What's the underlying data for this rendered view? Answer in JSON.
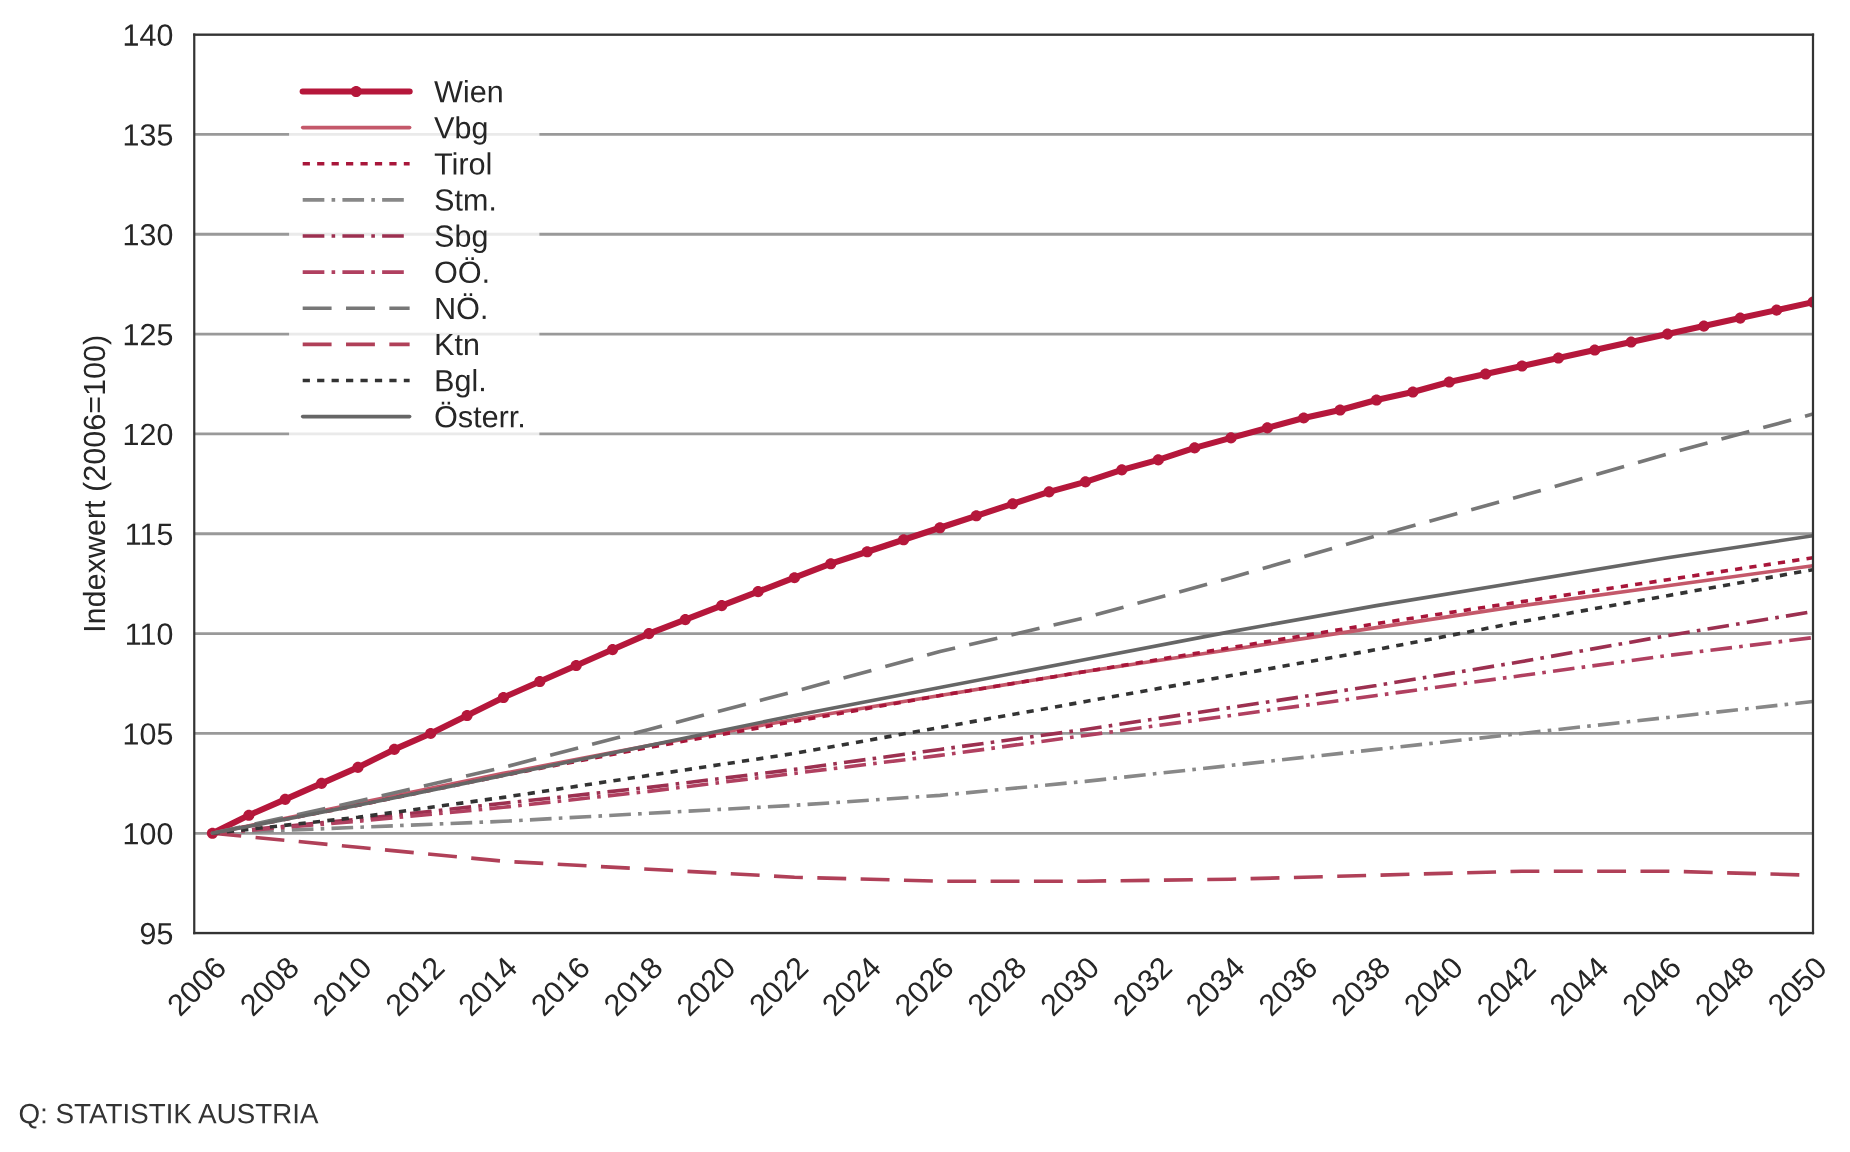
{
  "chart_data": {
    "type": "line",
    "ylabel": "Indexwert (2006=100)",
    "xlim": [
      2005.5,
      2050
    ],
    "ylim": [
      95,
      140
    ],
    "xticks": [
      2006,
      2008,
      2010,
      2012,
      2014,
      2016,
      2018,
      2020,
      2022,
      2024,
      2026,
      2028,
      2030,
      2032,
      2034,
      2036,
      2038,
      2040,
      2042,
      2044,
      2046,
      2048,
      2050
    ],
    "yticks": [
      95,
      100,
      105,
      110,
      115,
      120,
      125,
      130,
      135,
      140
    ],
    "grid": "y",
    "legend": "top left",
    "annotations": [
      "Q: STATISTIK AUSTRIA"
    ],
    "x": [
      2006,
      2010,
      2014,
      2018,
      2022,
      2026,
      2030,
      2034,
      2038,
      2042,
      2046,
      2050
    ],
    "series": [
      {
        "name": "Wien",
        "color": "#b5173b",
        "marker": "circle",
        "line_style": "solid",
        "x": [
          2006,
          2007,
          2008,
          2009,
          2010,
          2011,
          2012,
          2013,
          2014,
          2015,
          2016,
          2017,
          2018,
          2019,
          2020,
          2021,
          2022,
          2023,
          2024,
          2025,
          2026,
          2027,
          2028,
          2029,
          2030,
          2031,
          2032,
          2033,
          2034,
          2035,
          2036,
          2037,
          2038,
          2039,
          2040,
          2041,
          2042,
          2043,
          2044,
          2045,
          2046,
          2047,
          2048,
          2049,
          2050
        ],
        "values": [
          100,
          100.9,
          101.7,
          102.5,
          103.3,
          104.2,
          105.0,
          105.9,
          106.8,
          107.6,
          108.4,
          109.2,
          110.0,
          110.7,
          111.4,
          112.1,
          112.8,
          113.5,
          114.1,
          114.7,
          115.3,
          115.9,
          116.5,
          117.1,
          117.6,
          118.2,
          118.7,
          119.3,
          119.8,
          120.3,
          120.8,
          121.2,
          121.7,
          122.1,
          122.6,
          123.0,
          123.4,
          123.8,
          124.2,
          124.6,
          125.0,
          125.4,
          125.8,
          126.2,
          126.6
        ]
      },
      {
        "name": "Vbg",
        "color": "#c4586a",
        "line_style": "solid",
        "values": [
          100,
          101.5,
          103.0,
          104.4,
          105.7,
          106.9,
          108.1,
          109.2,
          110.3,
          111.4,
          112.4,
          113.4
        ]
      },
      {
        "name": "Tirol",
        "color": "#a8163a",
        "line_style": "dotted",
        "values": [
          100,
          101.4,
          102.9,
          104.3,
          105.6,
          106.9,
          108.1,
          109.3,
          110.5,
          111.6,
          112.7,
          113.8
        ]
      },
      {
        "name": "Stm.",
        "color": "#888888",
        "line_style": "dashdot",
        "values": [
          100,
          100.3,
          100.6,
          101.0,
          101.4,
          101.9,
          102.6,
          103.4,
          104.2,
          105.0,
          105.8,
          106.6
        ]
      },
      {
        "name": "Sbg",
        "color": "#9c3050",
        "line_style": "dashdot",
        "values": [
          100,
          100.7,
          101.5,
          102.3,
          103.2,
          104.2,
          105.2,
          106.3,
          107.4,
          108.6,
          109.9,
          111.1
        ]
      },
      {
        "name": "OÖ.",
        "color": "#b04060",
        "line_style": "dashdot",
        "values": [
          100,
          100.6,
          101.3,
          102.1,
          103.0,
          103.9,
          104.9,
          105.9,
          106.9,
          107.9,
          108.9,
          109.8
        ]
      },
      {
        "name": "NÖ.",
        "color": "#777777",
        "line_style": "dashed",
        "values": [
          100,
          101.6,
          103.3,
          105.2,
          107.1,
          109.1,
          110.8,
          112.8,
          114.9,
          116.9,
          119.0,
          121.0
        ]
      },
      {
        "name": "Ktn",
        "color": "#b04058",
        "line_style": "dashed",
        "values": [
          100,
          99.3,
          98.6,
          98.2,
          97.8,
          97.6,
          97.6,
          97.7,
          97.9,
          98.1,
          98.1,
          97.9
        ]
      },
      {
        "name": "Bgl.",
        "color": "#333333",
        "line_style": "dotted",
        "values": [
          100,
          100.8,
          101.8,
          102.9,
          104.0,
          105.3,
          106.6,
          107.9,
          109.2,
          110.6,
          111.9,
          113.2
        ]
      },
      {
        "name": "Österr.",
        "color": "#666666",
        "line_style": "solid",
        "values": [
          100,
          101.4,
          102.9,
          104.4,
          105.9,
          107.3,
          108.7,
          110.1,
          111.4,
          112.6,
          113.8,
          114.9
        ]
      }
    ]
  }
}
